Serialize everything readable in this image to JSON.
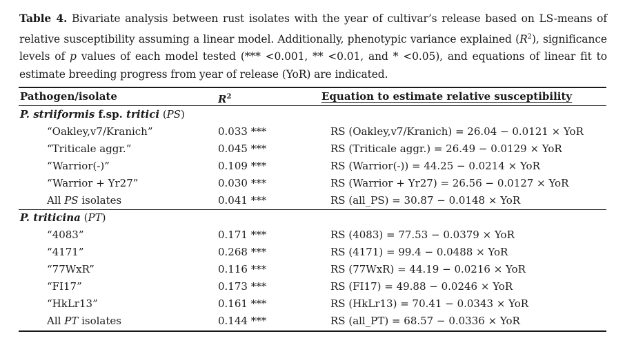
{
  "caption": {
    "label": "Table 4.",
    "t1": " Bivariate analysis between rust isolates with the year of cultivar’s release based on LS-means of relative susceptibility assuming a linear model. Additionally, phenotypic variance explained (",
    "r2": "R",
    "sup2": "2",
    "t2": "), significance levels of ",
    "p": "p",
    "t3": " values of each model tested (*** <0.001, ** <0.01, and * <0.05), and equations of linear fit to estimate breeding progress from year of release (YoR) are indicated."
  },
  "table": {
    "headers": {
      "pathogen": "Pathogen/isolate",
      "r2": "R",
      "r2sup": "2",
      "equation": "Equation to estimate relative susceptibility"
    },
    "groups": [
      {
        "title_italic": "P. striiformis",
        "title_mid": " f.sp. ",
        "title_italic2": "tritici",
        "title_abbr": " (PS)",
        "rows": [
          {
            "isolate": "“Oakley,v7/Kranich”",
            "r2": "0.033 ***",
            "eq": "RS (Oakley,v7/Kranich) = 26.04 − 0.0121 × YoR"
          },
          {
            "isolate": "“Triticale aggr.”",
            "r2": "0.045 ***",
            "eq": "RS (Triticale aggr.) = 26.49 − 0.0129 × YoR"
          },
          {
            "isolate": "“Warrior(-)”",
            "r2": "0.109 ***",
            "eq": "RS (Warrior(-)) = 44.25 − 0.0214 × YoR"
          },
          {
            "isolate": "“Warrior + Yr27”",
            "r2": "0.030 ***",
            "eq": "RS (Warrior + Yr27) = 26.56 − 0.0127 × YoR"
          }
        ],
        "summary": {
          "prefix": "All ",
          "abbr": "PS",
          "suffix": " isolates",
          "r2": "0.041 ***",
          "eq": "RS (all_PS) = 30.87 − 0.0148 × YoR"
        }
      },
      {
        "title_italic": "P. triticina",
        "title_abbr": " (PT)",
        "rows": [
          {
            "isolate": "“4083”",
            "r2": "0.171 ***",
            "eq": "RS (4083) = 77.53 − 0.0379 × YoR"
          },
          {
            "isolate": "“4171”",
            "r2": "0.268 ***",
            "eq": "RS (4171) = 99.4 − 0.0488 × YoR"
          },
          {
            "isolate": "“77WxR”",
            "r2": "0.116 ***",
            "eq": "RS (77WxR) = 44.19 − 0.0216 × YoR"
          },
          {
            "isolate": "“FI17”",
            "r2": "0.173 ***",
            "eq": "RS (FI17) = 49.88 − 0.0246 × YoR"
          },
          {
            "isolate": "“HkLr13”",
            "r2": "0.161 ***",
            "eq": "RS (HkLr13) = 70.41 − 0.0343 × YoR"
          }
        ],
        "summary": {
          "prefix": "All ",
          "abbr": "PT",
          "suffix": " isolates",
          "r2": "0.144 ***",
          "eq": "RS (all_PT) = 68.57 − 0.0336 × YoR"
        }
      }
    ]
  }
}
